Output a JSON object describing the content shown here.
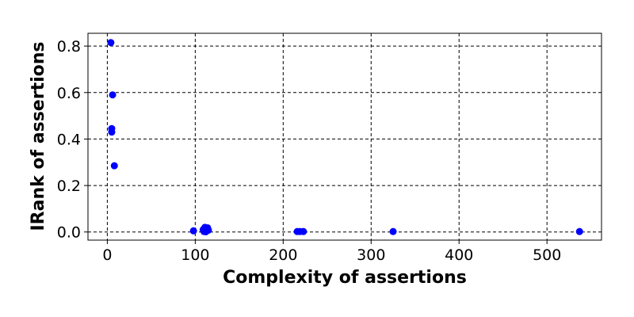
{
  "chart_data": {
    "type": "scatter",
    "title": "",
    "xlabel": "Complexity of assertions",
    "ylabel": "IRank of assertions",
    "xlim": [
      -22,
      562
    ],
    "ylim": [
      -0.035,
      0.855
    ],
    "xticks": [
      0,
      100,
      200,
      300,
      400,
      500
    ],
    "yticks": [
      0.0,
      0.2,
      0.4,
      0.6,
      0.8
    ],
    "xtick_labels": [
      "0",
      "100",
      "200",
      "300",
      "400",
      "500"
    ],
    "ytick_labels": [
      "0.0",
      "0.2",
      "0.4",
      "0.6",
      "0.8"
    ],
    "grid": true,
    "legend": "none",
    "marker_color": "#0000ff",
    "points": [
      {
        "x": 4,
        "y": 0.815
      },
      {
        "x": 6,
        "y": 0.59
      },
      {
        "x": 5,
        "y": 0.445
      },
      {
        "x": 5,
        "y": 0.43
      },
      {
        "x": 8,
        "y": 0.285
      },
      {
        "x": 98,
        "y": 0.005
      },
      {
        "x": 109,
        "y": 0.01
      },
      {
        "x": 110,
        "y": 0.002
      },
      {
        "x": 111,
        "y": 0.02
      },
      {
        "x": 112,
        "y": 0.015
      },
      {
        "x": 113,
        "y": 0.005
      },
      {
        "x": 114,
        "y": 0.018
      },
      {
        "x": 115,
        "y": 0.008
      },
      {
        "x": 112,
        "y": 0.001
      },
      {
        "x": 216,
        "y": 0.002
      },
      {
        "x": 219,
        "y": 0.002
      },
      {
        "x": 223,
        "y": 0.002
      },
      {
        "x": 325,
        "y": 0.002
      },
      {
        "x": 537,
        "y": 0.002
      }
    ]
  }
}
